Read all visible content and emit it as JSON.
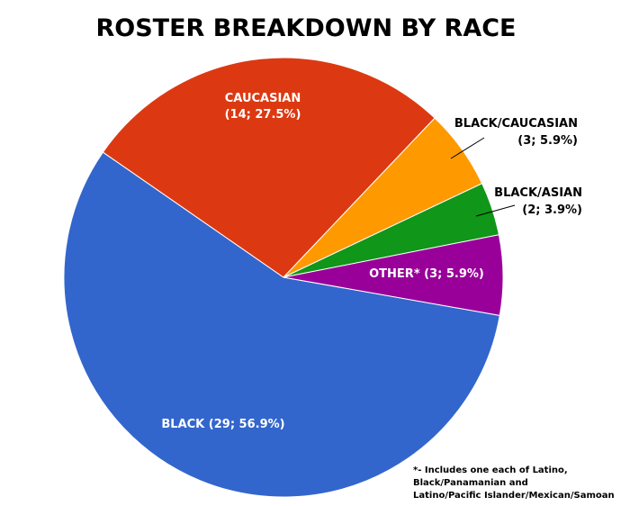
{
  "chart_data": {
    "type": "pie",
    "title": "ROSTER BREAKDOWN BY RACE",
    "slices": [
      {
        "label": "BLACK",
        "text": "BLACK (29; 56.9%)",
        "count": 29,
        "percent": 56.9,
        "color": "#3366cc"
      },
      {
        "label": "CAUCASIAN",
        "text": [
          "CAUCASIAN",
          "(14; 27.5%)"
        ],
        "count": 14,
        "percent": 27.5,
        "color": "#dc3912"
      },
      {
        "label": "BLACK/CAUCASIAN",
        "text": [
          "BLACK/CAUCASIAN",
          "(3; 5.9%)"
        ],
        "count": 3,
        "percent": 5.9,
        "color": "#ff9900"
      },
      {
        "label": "BLACK/ASIAN",
        "text": [
          "BLACK/ASIAN",
          "(2; 3.9%)"
        ],
        "count": 2,
        "percent": 3.9,
        "color": "#109618"
      },
      {
        "label": "OTHER*",
        "text": "OTHER* (3; 5.9%)",
        "count": 3,
        "percent": 5.9,
        "color": "#990099"
      }
    ],
    "footnote": [
      "*- Includes one each of Latino,",
      "Black/Panamanian and",
      "Latino/Pacific Islander/Mexican/Samoan"
    ]
  }
}
